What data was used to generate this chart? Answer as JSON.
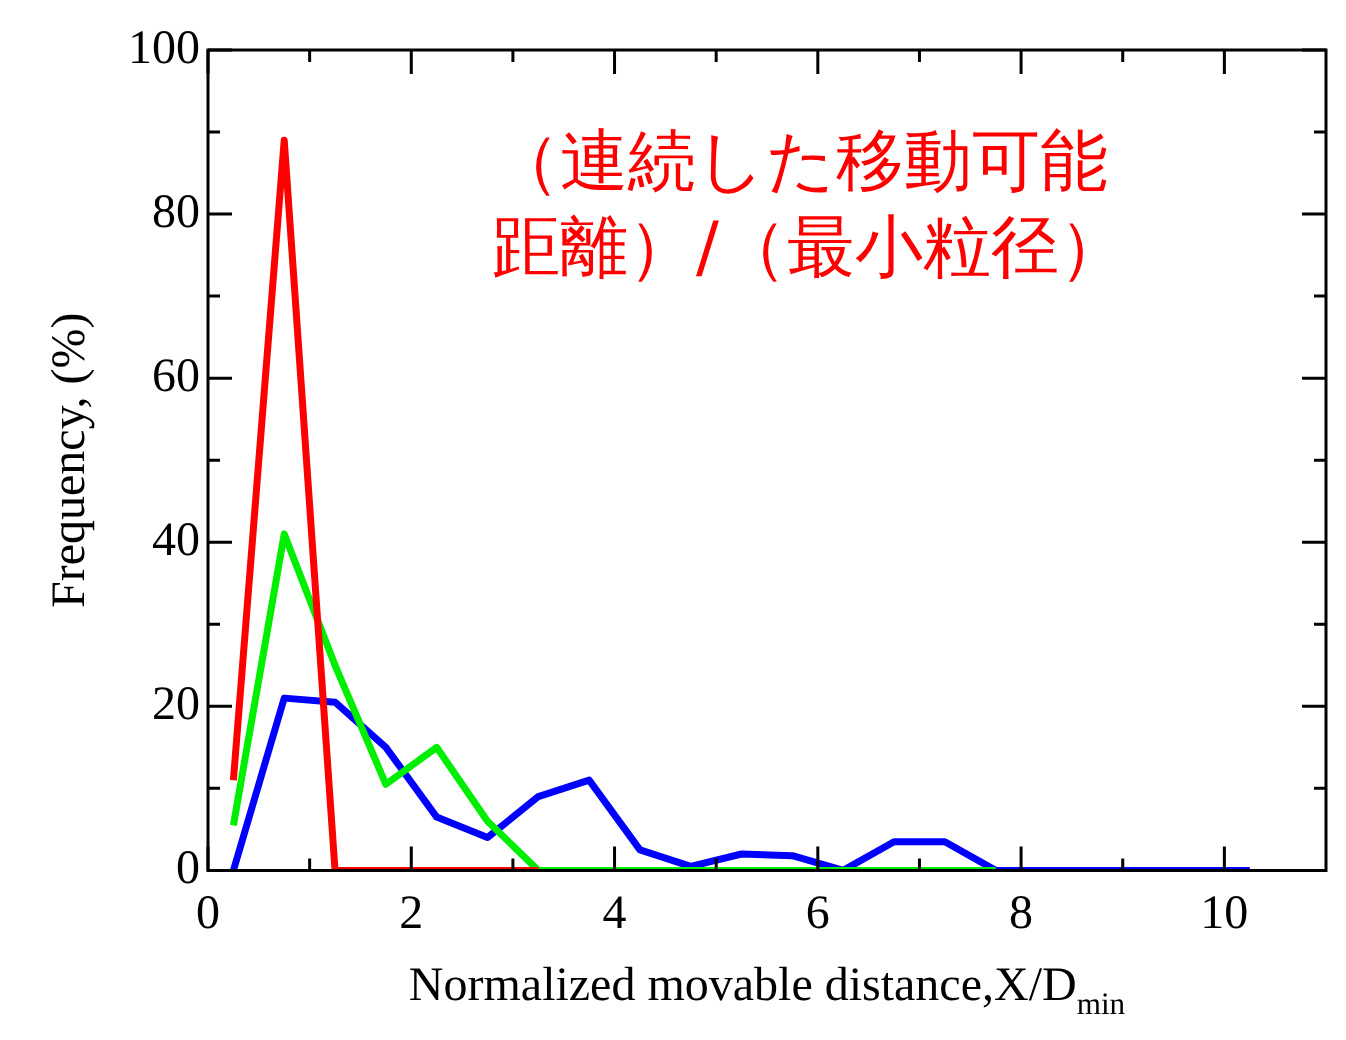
{
  "chart_data": {
    "type": "line",
    "xlabel": "Normalized movable distance,X/D$_{min}$",
    "ylabel": "Frequency, (%)",
    "annotations": [
      "（連続した移動可能距離）/（最小粒径）"
    ],
    "x": [
      0.25,
      0.75,
      1.25,
      1.75,
      2.25,
      2.75,
      3.25,
      3.75,
      4.25,
      4.75,
      5.25,
      5.75,
      6.25,
      6.75,
      7.25,
      7.75,
      8.25,
      8.75,
      9.25,
      9.75,
      10.25
    ],
    "series": [
      {
        "color": "#ff0000",
        "values": [
          11,
          89,
          0,
          0,
          0,
          0,
          0,
          null,
          null,
          null,
          null,
          null,
          null,
          null,
          null,
          null,
          null,
          null,
          null,
          null,
          null
        ]
      },
      {
        "color": "#00ee00",
        "values": [
          5.5,
          41,
          25,
          10.5,
          15,
          6,
          0,
          0,
          0,
          0,
          0,
          0,
          0,
          0,
          0,
          0,
          null,
          null,
          null,
          null,
          null
        ]
      },
      {
        "color": "#0000ff",
        "values": [
          0,
          21,
          20.5,
          15,
          6.5,
          4,
          9,
          11,
          2.5,
          0.5,
          2,
          1.8,
          0,
          3.5,
          3.5,
          0,
          0,
          0,
          0,
          0,
          0
        ]
      }
    ],
    "xlim": [
      0,
      11
    ],
    "xticks": [
      0,
      2,
      4,
      6,
      8,
      10
    ],
    "ylim": [
      0,
      100
    ],
    "yticks": [
      0,
      20,
      40,
      60,
      80,
      100
    ],
    "grid": false,
    "legend": false,
    "marker": "none",
    "line_style": "solid"
  }
}
